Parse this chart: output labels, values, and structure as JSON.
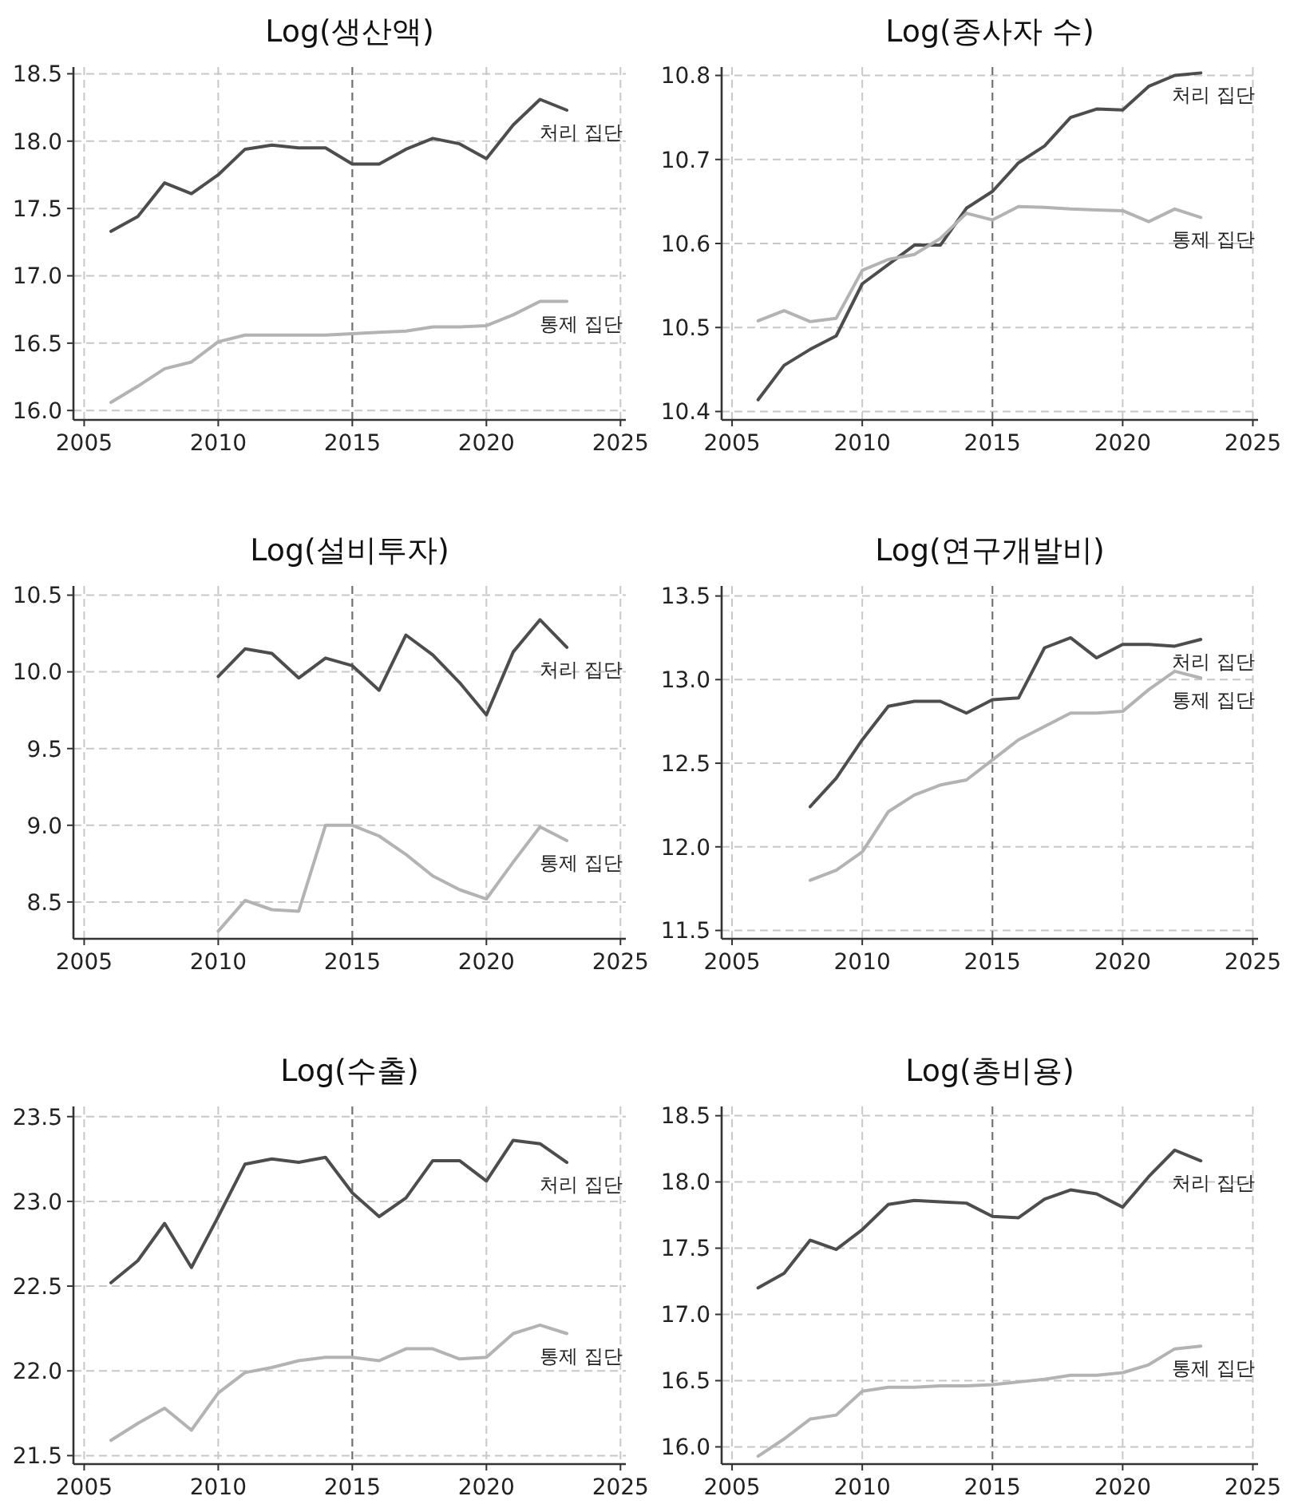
{
  "chart_data": [
    {
      "type": "line",
      "title": "Log(생산액)",
      "xlim": [
        2004.6,
        2025.2
      ],
      "xticks": [
        2005,
        2010,
        2015,
        2020,
        2025
      ],
      "ylim": [
        15.93,
        18.55
      ],
      "yticks": [
        {
          "value": 16,
          "label": "16.0"
        },
        {
          "value": 16.5,
          "label": "16.5"
        },
        {
          "value": 17,
          "label": "17.0"
        },
        {
          "value": 17.5,
          "label": "17.5"
        },
        {
          "value": 18,
          "label": "18.0"
        },
        {
          "value": 18.5,
          "label": "18.5"
        }
      ],
      "grid": true,
      "ref_lines": [
        {
          "axis": "x",
          "value": 2015,
          "color": "#707070",
          "line_style": "dashed"
        }
      ],
      "series": [
        {
          "name": "처리 집단",
          "color": "#4d4d4d",
          "x": [
            2006,
            2007,
            2008,
            2009,
            2010,
            2011,
            2012,
            2013,
            2014,
            2015,
            2016,
            2017,
            2018,
            2019,
            2020,
            2021,
            2022,
            2023
          ],
          "values": [
            17.33,
            17.44,
            17.69,
            17.61,
            17.75,
            17.94,
            17.97,
            17.95,
            17.95,
            17.83,
            17.83,
            17.94,
            18.02,
            17.98,
            17.87,
            18.12,
            18.31,
            18.23
          ]
        },
        {
          "name": "통제 집단",
          "color": "#b3b3b3",
          "x": [
            2006,
            2007,
            2008,
            2009,
            2010,
            2011,
            2012,
            2013,
            2014,
            2015,
            2016,
            2017,
            2018,
            2019,
            2020,
            2021,
            2022,
            2023
          ],
          "values": [
            16.06,
            16.18,
            16.31,
            16.36,
            16.51,
            16.56,
            16.56,
            16.56,
            16.56,
            16.57,
            16.58,
            16.59,
            16.62,
            16.62,
            16.63,
            16.71,
            16.81,
            16.81
          ]
        }
      ]
    },
    {
      "type": "line",
      "title": "Log(종사자 수)",
      "xlim": [
        2004.6,
        2025.2
      ],
      "xticks": [
        2005,
        2010,
        2015,
        2020,
        2025
      ],
      "ylim": [
        10.39,
        10.81
      ],
      "yticks": [
        10.4,
        10.5,
        10.6,
        10.7,
        10.8
      ],
      "grid": true,
      "ref_lines": [
        {
          "axis": "x",
          "value": 2015,
          "color": "#707070",
          "line_style": "dashed"
        }
      ],
      "series": [
        {
          "name": "처리 집단",
          "color": "#4d4d4d",
          "x": [
            2006,
            2007,
            2008,
            2009,
            2010,
            2011,
            2012,
            2013,
            2014,
            2015,
            2016,
            2017,
            2018,
            2019,
            2020,
            2021,
            2022,
            2023
          ],
          "values": [
            10.414,
            10.455,
            10.474,
            10.49,
            10.552,
            10.575,
            10.598,
            10.598,
            10.642,
            10.662,
            10.696,
            10.716,
            10.75,
            10.76,
            10.759,
            10.787,
            10.8,
            10.803
          ]
        },
        {
          "name": "통제 집단",
          "color": "#b3b3b3",
          "x": [
            2006,
            2007,
            2008,
            2009,
            2010,
            2011,
            2012,
            2013,
            2014,
            2015,
            2016,
            2017,
            2018,
            2019,
            2020,
            2021,
            2022,
            2023
          ],
          "values": [
            10.508,
            10.52,
            10.507,
            10.511,
            10.568,
            10.581,
            10.587,
            10.606,
            10.636,
            10.628,
            10.644,
            10.643,
            10.641,
            10.64,
            10.639,
            10.626,
            10.641,
            10.631
          ]
        }
      ]
    },
    {
      "type": "line",
      "title": "Log(설비투자)",
      "xlim": [
        2004.6,
        2025.2
      ],
      "xticks": [
        2005,
        2010,
        2015,
        2020,
        2025
      ],
      "ylim": [
        8.26,
        10.56
      ],
      "yticks": [
        {
          "value": 8.5,
          "label": "8.5"
        },
        {
          "value": 9,
          "label": "9.0"
        },
        {
          "value": 9.5,
          "label": "9.5"
        },
        {
          "value": 10,
          "label": "10.0"
        },
        {
          "value": 10.5,
          "label": "10.5"
        }
      ],
      "grid": true,
      "ref_lines": [
        {
          "axis": "x",
          "value": 2015,
          "color": "#707070",
          "line_style": "dashed"
        }
      ],
      "series": [
        {
          "name": "처리 집단",
          "color": "#4d4d4d",
          "x": [
            2010,
            2011,
            2012,
            2013,
            2014,
            2015,
            2016,
            2017,
            2018,
            2019,
            2020,
            2021,
            2022,
            2023
          ],
          "values": [
            9.97,
            10.15,
            10.12,
            9.96,
            10.09,
            10.04,
            9.88,
            10.24,
            10.11,
            9.93,
            9.72,
            10.13,
            10.34,
            10.16
          ]
        },
        {
          "name": "통제 집단",
          "color": "#b3b3b3",
          "x": [
            2010,
            2011,
            2012,
            2013,
            2014,
            2015,
            2016,
            2017,
            2018,
            2019,
            2020,
            2021,
            2022,
            2023
          ],
          "values": [
            8.31,
            8.51,
            8.45,
            8.44,
            9.0,
            9.0,
            8.93,
            8.81,
            8.67,
            8.58,
            8.52,
            8.76,
            8.99,
            8.9
          ]
        }
      ]
    },
    {
      "type": "line",
      "title": "Log(연구개발비)",
      "xlim": [
        2004.6,
        2025.2
      ],
      "xticks": [
        2005,
        2010,
        2015,
        2020,
        2025
      ],
      "ylim": [
        11.45,
        13.56
      ],
      "yticks": [
        {
          "value": 11.5,
          "label": "11.5"
        },
        {
          "value": 12,
          "label": "12.0"
        },
        {
          "value": 12.5,
          "label": "12.5"
        },
        {
          "value": 13,
          "label": "13.0"
        },
        {
          "value": 13.5,
          "label": "13.5"
        }
      ],
      "grid": true,
      "ref_lines": [
        {
          "axis": "x",
          "value": 2015,
          "color": "#707070",
          "line_style": "dashed"
        }
      ],
      "series": [
        {
          "name": "처리 집단",
          "color": "#4d4d4d",
          "x": [
            2008,
            2009,
            2010,
            2011,
            2012,
            2013,
            2014,
            2015,
            2016,
            2017,
            2018,
            2019,
            2020,
            2021,
            2022,
            2023
          ],
          "values": [
            12.24,
            12.41,
            12.64,
            12.84,
            12.87,
            12.87,
            12.8,
            12.88,
            12.89,
            13.19,
            13.25,
            13.13,
            13.21,
            13.21,
            13.2,
            13.24
          ]
        },
        {
          "name": "통제 집단",
          "color": "#b3b3b3",
          "x": [
            2008,
            2009,
            2010,
            2011,
            2012,
            2013,
            2014,
            2015,
            2016,
            2017,
            2018,
            2019,
            2020,
            2021,
            2022,
            2023
          ],
          "values": [
            11.8,
            11.86,
            11.97,
            12.21,
            12.31,
            12.37,
            12.4,
            12.52,
            12.64,
            12.72,
            12.8,
            12.8,
            12.81,
            12.94,
            13.05,
            13.01
          ]
        }
      ]
    },
    {
      "type": "line",
      "title": "Log(수출)",
      "xlim": [
        2004.6,
        2025.2
      ],
      "xticks": [
        2005,
        2010,
        2015,
        2020,
        2025
      ],
      "ylim": [
        21.45,
        23.56
      ],
      "yticks": [
        {
          "value": 21.5,
          "label": "21.5"
        },
        {
          "value": 22,
          "label": "22.0"
        },
        {
          "value": 22.5,
          "label": "22.5"
        },
        {
          "value": 23,
          "label": "23.0"
        },
        {
          "value": 23.5,
          "label": "23.5"
        }
      ],
      "grid": true,
      "ref_lines": [
        {
          "axis": "x",
          "value": 2015,
          "color": "#707070",
          "line_style": "dashed"
        }
      ],
      "series": [
        {
          "name": "처리 집단",
          "color": "#4d4d4d",
          "x": [
            2006,
            2007,
            2008,
            2009,
            2010,
            2011,
            2012,
            2013,
            2014,
            2015,
            2016,
            2017,
            2018,
            2019,
            2020,
            2021,
            2022,
            2023
          ],
          "values": [
            22.52,
            22.65,
            22.87,
            22.61,
            22.91,
            23.22,
            23.25,
            23.23,
            23.26,
            23.05,
            22.91,
            23.02,
            23.24,
            23.24,
            23.12,
            23.36,
            23.34,
            23.23
          ]
        },
        {
          "name": "통제 집단",
          "color": "#b3b3b3",
          "x": [
            2006,
            2007,
            2008,
            2009,
            2010,
            2011,
            2012,
            2013,
            2014,
            2015,
            2016,
            2017,
            2018,
            2019,
            2020,
            2021,
            2022,
            2023
          ],
          "values": [
            21.59,
            21.69,
            21.78,
            21.65,
            21.87,
            21.99,
            22.02,
            22.06,
            22.08,
            22.08,
            22.06,
            22.13,
            22.13,
            22.07,
            22.08,
            22.22,
            22.27,
            22.22
          ]
        }
      ]
    },
    {
      "type": "line",
      "title": "Log(총비용)",
      "xlim": [
        2004.6,
        2025.2
      ],
      "xticks": [
        2005,
        2010,
        2015,
        2020,
        2025
      ],
      "ylim": [
        15.87,
        18.57
      ],
      "yticks": [
        {
          "value": 16,
          "label": "16.0"
        },
        {
          "value": 16.5,
          "label": "16.5"
        },
        {
          "value": 17,
          "label": "17.0"
        },
        {
          "value": 17.5,
          "label": "17.5"
        },
        {
          "value": 18,
          "label": "18.0"
        },
        {
          "value": 18.5,
          "label": "18.5"
        }
      ],
      "grid": true,
      "ref_lines": [
        {
          "axis": "x",
          "value": 2015,
          "color": "#707070",
          "line_style": "dashed"
        }
      ],
      "series": [
        {
          "name": "처리 집단",
          "color": "#4d4d4d",
          "x": [
            2006,
            2007,
            2008,
            2009,
            2010,
            2011,
            2012,
            2013,
            2014,
            2015,
            2016,
            2017,
            2018,
            2019,
            2020,
            2021,
            2022,
            2023
          ],
          "values": [
            17.2,
            17.31,
            17.56,
            17.49,
            17.64,
            17.83,
            17.86,
            17.85,
            17.84,
            17.74,
            17.73,
            17.87,
            17.94,
            17.91,
            17.81,
            18.04,
            18.24,
            18.16
          ]
        },
        {
          "name": "통제 집단",
          "color": "#b3b3b3",
          "x": [
            2006,
            2007,
            2008,
            2009,
            2010,
            2011,
            2012,
            2013,
            2014,
            2015,
            2016,
            2017,
            2018,
            2019,
            2020,
            2021,
            2022,
            2023
          ],
          "values": [
            15.93,
            16.06,
            16.21,
            16.24,
            16.42,
            16.45,
            16.45,
            16.46,
            16.46,
            16.47,
            16.49,
            16.51,
            16.54,
            16.54,
            16.56,
            16.62,
            16.74,
            16.76
          ]
        }
      ]
    }
  ]
}
